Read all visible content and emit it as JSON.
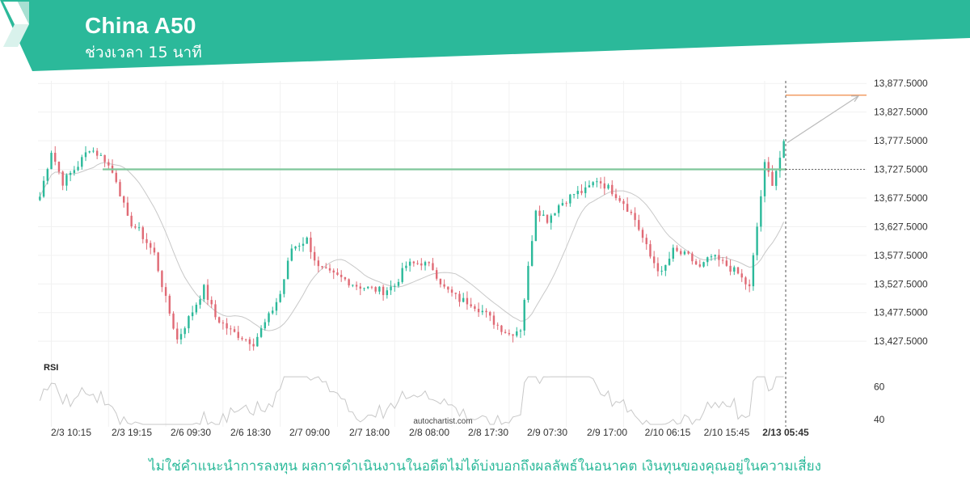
{
  "header": {
    "title": "China A50",
    "subtitle": "ช่วงเวลา 15 นาที",
    "brand_color": "#2bb99a",
    "logo_icon": "autochartist-logo-icon"
  },
  "chart_data": {
    "type": "candlestick",
    "yticks": [
      "13,877.5000",
      "13,827.5000",
      "13,777.5000",
      "13,727.5000",
      "13,677.5000",
      "13,627.5000",
      "13,577.5000",
      "13,527.5000",
      "13,477.5000",
      "13,427.5000"
    ],
    "ytick_values": [
      13877.5,
      13827.5,
      13777.5,
      13727.5,
      13677.5,
      13627.5,
      13577.5,
      13527.5,
      13477.5,
      13427.5
    ],
    "ylim": [
      13408,
      13882
    ],
    "xticks": [
      "2/3 10:15",
      "2/3 19:15",
      "2/6 09:30",
      "2/6 18:30",
      "2/7 09:00",
      "2/7 18:00",
      "2/8 08:00",
      "2/8 17:30",
      "2/9 07:30",
      "2/9 17:00",
      "2/10 06:15",
      "2/10 15:45",
      "2/13 05:45"
    ],
    "support_level": 13727.5,
    "target_level": 13857,
    "close_points": [
      [
        0,
        13680
      ],
      [
        3,
        13760
      ],
      [
        6,
        13705
      ],
      [
        10,
        13735
      ],
      [
        13,
        13765
      ],
      [
        17,
        13745
      ],
      [
        20,
        13710
      ],
      [
        23,
        13640
      ],
      [
        26,
        13620
      ],
      [
        30,
        13580
      ],
      [
        33,
        13500
      ],
      [
        36,
        13430
      ],
      [
        40,
        13480
      ],
      [
        43,
        13520
      ],
      [
        46,
        13470
      ],
      [
        50,
        13445
      ],
      [
        53,
        13435
      ],
      [
        56,
        13425
      ],
      [
        60,
        13470
      ],
      [
        63,
        13510
      ],
      [
        66,
        13590
      ],
      [
        70,
        13605
      ],
      [
        73,
        13555
      ],
      [
        76,
        13545
      ],
      [
        80,
        13535
      ],
      [
        83,
        13525
      ],
      [
        86,
        13520
      ],
      [
        90,
        13515
      ],
      [
        93,
        13525
      ],
      [
        96,
        13560
      ],
      [
        100,
        13565
      ],
      [
        103,
        13555
      ],
      [
        106,
        13520
      ],
      [
        110,
        13500
      ],
      [
        113,
        13495
      ],
      [
        116,
        13480
      ],
      [
        120,
        13455
      ],
      [
        123,
        13440
      ],
      [
        126,
        13450
      ],
      [
        130,
        13660
      ],
      [
        133,
        13640
      ],
      [
        136,
        13665
      ],
      [
        140,
        13685
      ],
      [
        143,
        13690
      ],
      [
        146,
        13710
      ],
      [
        150,
        13690
      ],
      [
        153,
        13670
      ],
      [
        156,
        13640
      ],
      [
        160,
        13575
      ],
      [
        163,
        13545
      ],
      [
        166,
        13585
      ],
      [
        170,
        13575
      ],
      [
        173,
        13555
      ],
      [
        176,
        13575
      ],
      [
        180,
        13560
      ],
      [
        183,
        13545
      ],
      [
        186,
        13520
      ],
      [
        190,
        13735
      ],
      [
        192,
        13705
      ],
      [
        195,
        13770
      ]
    ],
    "rsi": {
      "label": "RSI",
      "yticks": [
        "60",
        "40"
      ],
      "ylim": [
        36,
        68
      ]
    },
    "watermark": "autochartist.com",
    "colors": {
      "up": "#2bb99a",
      "down": "#e06a75",
      "support": "#7fc79b",
      "target": "#ef8a47",
      "ma": "#c8c8c8",
      "rsi": "#c8c8c8"
    }
  },
  "footer": {
    "disclaimer": "ไม่ใช่คำแนะนำการลงทุน ผลการดำเนินงานในอดีตไม่ได้บ่งบอกถึงผลลัพธ์ในอนาคต เงินทุนของคุณอยู่ในความเสี่ยง"
  }
}
